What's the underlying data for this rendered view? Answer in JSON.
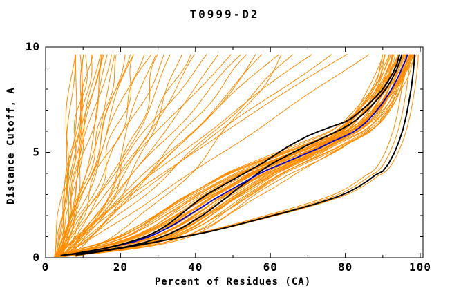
{
  "chart_data": {
    "type": "line",
    "title": "T0999-D2",
    "xlabel": "Percent of Residues (CA)",
    "ylabel": "Distance Cutoff, A",
    "xlim": [
      0,
      100.7
    ],
    "ylim": [
      0,
      10
    ],
    "x_major_ticks": [
      0,
      20,
      40,
      60,
      80,
      100
    ],
    "x_minor_ticks": [
      10,
      30,
      50,
      70,
      90
    ],
    "y_major_ticks": [
      0,
      5,
      10
    ],
    "y_minor_ticks": [
      1,
      2,
      3,
      4,
      6,
      7,
      8,
      9
    ],
    "grid": false,
    "legend": "none",
    "background": "#ffffff",
    "frame_color": "#000000",
    "text_color": "#000000",
    "series": [
      {
        "name": "highlight-black-upper",
        "color": "#000000",
        "stroke_width": 2,
        "points": [
          [
            4,
            0.1
          ],
          [
            8,
            0.2
          ],
          [
            12,
            0.32
          ],
          [
            16,
            0.45
          ],
          [
            20,
            0.62
          ],
          [
            24,
            0.83
          ],
          [
            27,
            1.02
          ],
          [
            30,
            1.28
          ],
          [
            33,
            1.62
          ],
          [
            35,
            1.9
          ],
          [
            37,
            2.18
          ],
          [
            39,
            2.48
          ],
          [
            41,
            2.75
          ],
          [
            43,
            3.0
          ],
          [
            46,
            3.3
          ],
          [
            49,
            3.6
          ],
          [
            52,
            3.9
          ],
          [
            55,
            4.2
          ],
          [
            58,
            4.5
          ],
          [
            61,
            4.85
          ],
          [
            64,
            5.2
          ],
          [
            67,
            5.5
          ],
          [
            70,
            5.78
          ],
          [
            73,
            6.0
          ],
          [
            76,
            6.2
          ],
          [
            78,
            6.32
          ],
          [
            80,
            6.45
          ],
          [
            82,
            6.65
          ],
          [
            84,
            6.95
          ],
          [
            86,
            7.25
          ],
          [
            88,
            7.6
          ],
          [
            90,
            8.0
          ],
          [
            91.5,
            8.4
          ],
          [
            92.8,
            8.8
          ],
          [
            93.8,
            9.2
          ],
          [
            94.5,
            9.65
          ]
        ]
      },
      {
        "name": "highlight-black-second",
        "color": "#000000",
        "stroke_width": 2,
        "points": [
          [
            4,
            0.1
          ],
          [
            10,
            0.22
          ],
          [
            16,
            0.36
          ],
          [
            21,
            0.5
          ],
          [
            26,
            0.7
          ],
          [
            30,
            0.92
          ],
          [
            33,
            1.12
          ],
          [
            36,
            1.38
          ],
          [
            38,
            1.58
          ],
          [
            40,
            1.8
          ],
          [
            42,
            2.02
          ],
          [
            44,
            2.28
          ],
          [
            46,
            2.55
          ],
          [
            48,
            2.82
          ],
          [
            50,
            3.1
          ],
          [
            52,
            3.38
          ],
          [
            54,
            3.65
          ],
          [
            56,
            3.92
          ],
          [
            58,
            4.18
          ],
          [
            60,
            4.42
          ],
          [
            62,
            4.62
          ],
          [
            64,
            4.8
          ],
          [
            67,
            5.08
          ],
          [
            70,
            5.35
          ],
          [
            73,
            5.6
          ],
          [
            76,
            5.85
          ],
          [
            79,
            6.1
          ],
          [
            81,
            6.3
          ],
          [
            83,
            6.55
          ],
          [
            85,
            6.85
          ],
          [
            87,
            7.2
          ],
          [
            89,
            7.6
          ],
          [
            91,
            8.05
          ],
          [
            92.5,
            8.5
          ],
          [
            93.8,
            8.95
          ],
          [
            94.6,
            9.35
          ],
          [
            95.1,
            9.65
          ]
        ]
      },
      {
        "name": "highlight-blue",
        "color": "#0000CD",
        "stroke_width": 1.8,
        "points": [
          [
            4,
            0.1
          ],
          [
            8,
            0.2
          ],
          [
            12,
            0.32
          ],
          [
            16,
            0.45
          ],
          [
            20,
            0.6
          ],
          [
            24,
            0.78
          ],
          [
            27,
            0.95
          ],
          [
            30,
            1.18
          ],
          [
            33,
            1.45
          ],
          [
            35,
            1.65
          ],
          [
            37,
            1.88
          ],
          [
            39,
            2.1
          ],
          [
            41,
            2.32
          ],
          [
            43,
            2.55
          ],
          [
            45,
            2.78
          ],
          [
            47,
            2.98
          ],
          [
            49,
            3.18
          ],
          [
            51,
            3.38
          ],
          [
            53,
            3.58
          ],
          [
            55,
            3.78
          ],
          [
            57,
            3.98
          ],
          [
            59,
            4.15
          ],
          [
            61,
            4.3
          ],
          [
            63,
            4.45
          ],
          [
            65,
            4.6
          ],
          [
            67,
            4.75
          ],
          [
            69,
            4.9
          ],
          [
            71,
            5.05
          ],
          [
            73,
            5.2
          ],
          [
            75,
            5.38
          ],
          [
            77,
            5.55
          ],
          [
            79,
            5.7
          ],
          [
            80,
            5.78
          ],
          [
            82,
            5.95
          ],
          [
            84,
            6.2
          ],
          [
            86,
            6.5
          ],
          [
            88,
            6.9
          ],
          [
            90,
            7.35
          ],
          [
            91.5,
            7.75
          ],
          [
            93,
            8.2
          ],
          [
            94.3,
            8.65
          ],
          [
            95.4,
            9.1
          ],
          [
            96.2,
            9.4
          ],
          [
            96.6,
            9.65
          ]
        ]
      },
      {
        "name": "highlight-black-lower",
        "color": "#000000",
        "stroke_width": 2,
        "points": [
          [
            8,
            0.12
          ],
          [
            12,
            0.22
          ],
          [
            16,
            0.33
          ],
          [
            20,
            0.45
          ],
          [
            24,
            0.57
          ],
          [
            28,
            0.7
          ],
          [
            32,
            0.83
          ],
          [
            36,
            0.97
          ],
          [
            40,
            1.1
          ],
          [
            44,
            1.25
          ],
          [
            48,
            1.42
          ],
          [
            52,
            1.6
          ],
          [
            56,
            1.78
          ],
          [
            60,
            1.97
          ],
          [
            64,
            2.15
          ],
          [
            68,
            2.35
          ],
          [
            72,
            2.55
          ],
          [
            75,
            2.72
          ],
          [
            78,
            2.9
          ],
          [
            81,
            3.12
          ],
          [
            84,
            3.42
          ],
          [
            86,
            3.65
          ],
          [
            88,
            3.92
          ],
          [
            90,
            4.1
          ],
          [
            91.5,
            4.45
          ],
          [
            93,
            4.95
          ],
          [
            94.3,
            5.5
          ],
          [
            95.4,
            6.1
          ],
          [
            96.3,
            6.75
          ],
          [
            97,
            7.4
          ],
          [
            97.6,
            8.05
          ],
          [
            98.1,
            8.75
          ],
          [
            98.4,
            9.3
          ],
          [
            98.5,
            9.65
          ]
        ]
      }
    ],
    "ensemble": {
      "description": "many thin orange model curves: dense sigmoid bundle at right, steep fan at left, sparse diagonals in middle",
      "color": "#FF8C00",
      "stroke_width": 1,
      "seed": 1234567,
      "start_x_range": [
        2.2,
        5.2
      ],
      "end_y": 9.65,
      "bundle_top_x": [
        89.6,
        90.2,
        90.7,
        91.1,
        91.5,
        91.8,
        92.1,
        92.4,
        92.7,
        93,
        93.2,
        93.5,
        93.7,
        93.9,
        94.1,
        94.3,
        94.5,
        94.7,
        94.9,
        95.1,
        95.3,
        95.5,
        95.7,
        95.9,
        96.1,
        96.3,
        96.5,
        96.7,
        96.9,
        97.1,
        97.3,
        97.45,
        97.6,
        97.7,
        97.8,
        97.9,
        98,
        98.1,
        98.2,
        98.3,
        98.35,
        98.4
      ],
      "fan_top_x": [
        7.2,
        7.6,
        9,
        9.3,
        10.6,
        10.9,
        11.2,
        12,
        12.4,
        13.7,
        14,
        14.3,
        16.4,
        16.8,
        17.2,
        19.2,
        19.6,
        21.1,
        21.5,
        23.3,
        24.6,
        26,
        27.5,
        29,
        30.5,
        32.2,
        34,
        36,
        38.2,
        54,
        56.5,
        63.5
      ],
      "diag_top_x": [
        40,
        43.5,
        46.5,
        49.5,
        52.5,
        58,
        62,
        66,
        71,
        76,
        81,
        86
      ],
      "low_offsets": [
        -2.5,
        -1.2,
        1.0
      ]
    }
  }
}
